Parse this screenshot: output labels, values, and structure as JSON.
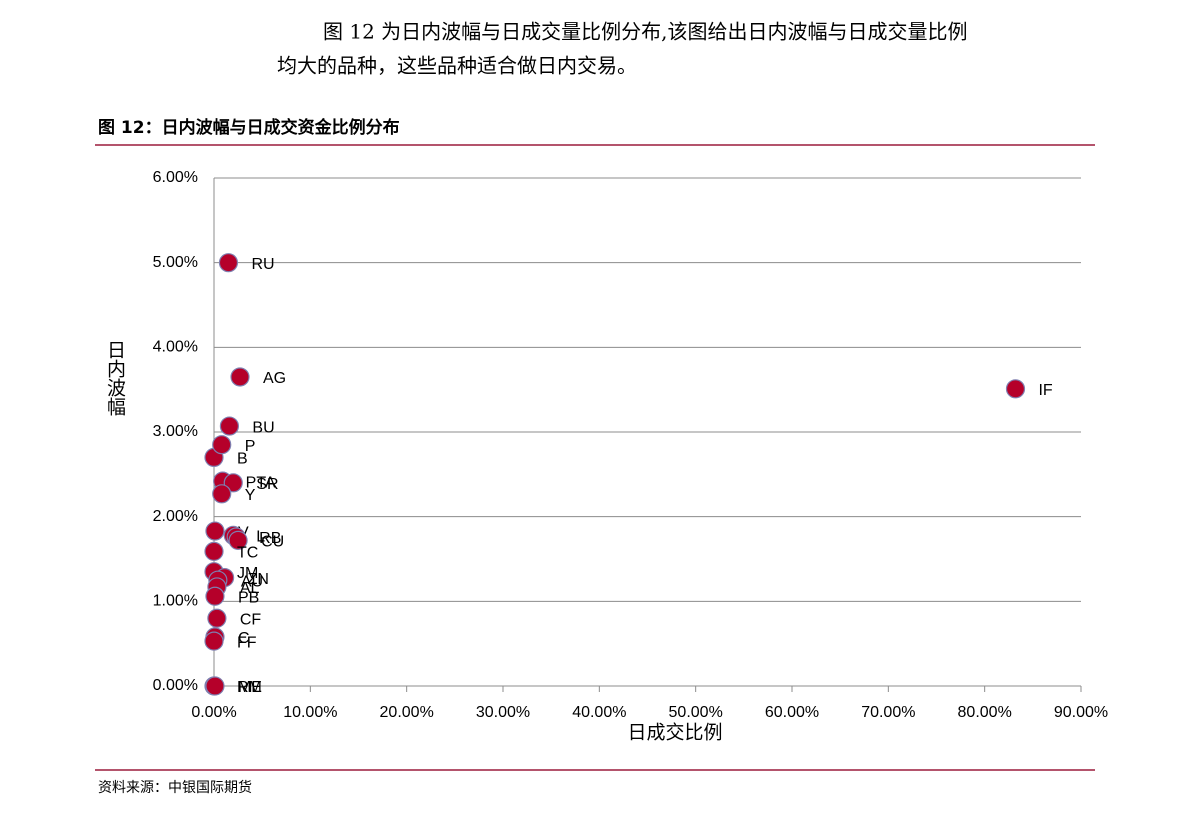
{
  "paragraph_lines": [
    "图 12 为日内波幅与日成交量比例分布,该图给出日内波幅与日成交量比例",
    "均大的品种，这些品种适合做日内交易。"
  ],
  "figure_title": "图 12：日内波幅与日成交资金比例分布",
  "source": "资料来源：中银国际期货",
  "chart_data": {
    "type": "scatter",
    "x_label": "日成交比例",
    "y_label": "日内波幅",
    "labels": [
      "RU",
      "AG",
      "IF",
      "BU",
      "B",
      "P",
      "PTA",
      "SR",
      "Y",
      "V",
      "L",
      "RB",
      "CU",
      "TC",
      "JM",
      "ZN",
      "AU",
      "AL",
      "PB",
      "CF",
      "C",
      "FF",
      "RM",
      "ME"
    ],
    "x": [
      1.5,
      2.7,
      83.2,
      1.6,
      0.0,
      0.8,
      0.9,
      2.0,
      0.8,
      0.1,
      2.0,
      2.3,
      2.5,
      0.0,
      0.0,
      1.1,
      0.4,
      0.3,
      0.1,
      0.3,
      0.1,
      0.0,
      0.0,
      0.1
    ],
    "values": [
      5.0,
      3.65,
      3.51,
      3.07,
      2.7,
      2.85,
      2.42,
      2.4,
      2.27,
      1.83,
      1.78,
      1.76,
      1.72,
      1.59,
      1.35,
      1.28,
      1.25,
      1.17,
      1.06,
      0.8,
      0.58,
      0.53,
      0,
      0
    ],
    "color": "#b5002a",
    "xlim": [
      0,
      90
    ],
    "xticks": [
      {
        "value": 0,
        "label": "0.00%"
      },
      {
        "value": 10,
        "label": "10.00%"
      },
      {
        "value": 20,
        "label": "20.00%"
      },
      {
        "value": 30,
        "label": "30.00%"
      },
      {
        "value": 40,
        "label": "40.00%"
      },
      {
        "value": 50,
        "label": "50.00%"
      },
      {
        "value": 60,
        "label": "60.00%"
      },
      {
        "value": 70,
        "label": "70.00%"
      },
      {
        "value": 80,
        "label": "80.00%"
      },
      {
        "value": 90,
        "label": "90.00%"
      }
    ],
    "ylim": [
      0,
      6
    ],
    "yticks": [
      {
        "value": 0,
        "label": "0.00%"
      },
      {
        "value": 1,
        "label": "1.00%"
      },
      {
        "value": 2,
        "label": "2.00%"
      },
      {
        "value": 3,
        "label": "3.00%"
      },
      {
        "value": 4,
        "label": "4.00%"
      },
      {
        "value": 5,
        "label": "5.00%"
      },
      {
        "value": 6,
        "label": "6.00%"
      }
    ],
    "grid": true
  }
}
